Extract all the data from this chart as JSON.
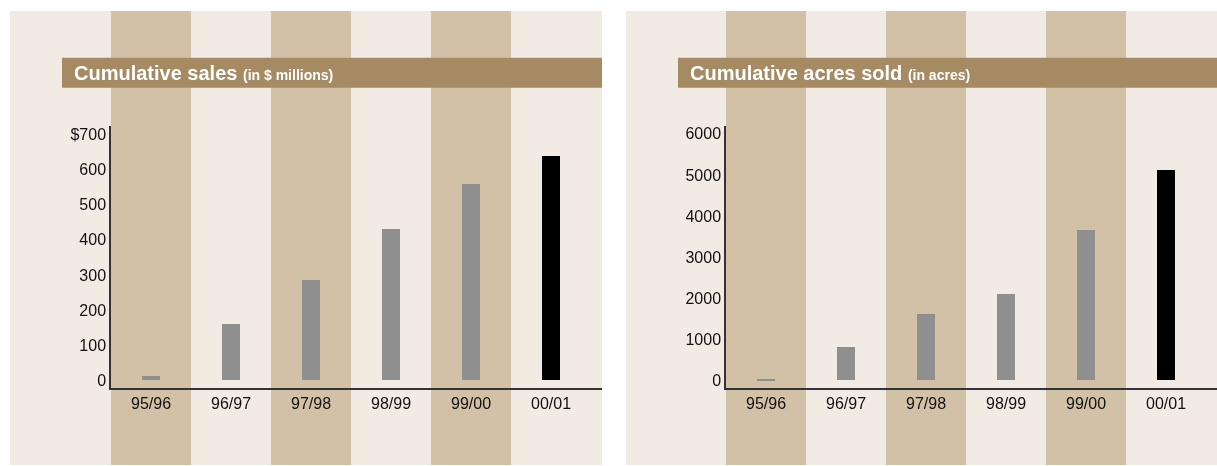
{
  "chart_data": [
    {
      "type": "bar",
      "title": "Cumulative sales",
      "subtitle": "(in $ millions)",
      "categories": [
        "95/96",
        "96/97",
        "97/98",
        "98/99",
        "99/00",
        "00/01"
      ],
      "values": [
        12,
        160,
        285,
        429,
        557,
        638
      ],
      "colors": [
        "#8f8f8f",
        "#8f8f8f",
        "#8f8f8f",
        "#8f8f8f",
        "#8f8f8f",
        "#000000"
      ],
      "ylim": [
        -22,
        722
      ],
      "yticks": [
        0,
        100,
        200,
        300,
        400,
        500,
        600,
        {
          "value": 700,
          "label": "$700"
        }
      ],
      "grid": false,
      "legend": false,
      "bands": [
        {
          "axis": "x",
          "from": "95/96",
          "to": "95/96",
          "color": "#d2c1a7"
        },
        {
          "axis": "x",
          "from": "97/98",
          "to": "97/98",
          "color": "#d2c1a7"
        },
        {
          "axis": "x",
          "from": "99/00",
          "to": "99/00",
          "color": "#d2c1a7"
        }
      ]
    },
    {
      "type": "bar",
      "title": "Cumulative acres sold",
      "subtitle": "(in acres)",
      "categories": [
        "95/96",
        "96/97",
        "97/98",
        "98/99",
        "99/00",
        "00/01"
      ],
      "values": [
        17,
        795,
        1608,
        2100,
        3647,
        5100
      ],
      "colors": [
        "#8f8f8f",
        "#8f8f8f",
        "#8f8f8f",
        "#8f8f8f",
        "#8f8f8f",
        "#000000"
      ],
      "ylim": [
        -190,
        6180
      ],
      "yticks": [
        0,
        1000,
        2000,
        3000,
        4000,
        5000,
        6000
      ],
      "grid": false,
      "legend": false,
      "bands": [
        {
          "axis": "x",
          "from": "95/96",
          "to": "95/96",
          "color": "#d2c1a7"
        },
        {
          "axis": "x",
          "from": "97/98",
          "to": "97/98",
          "color": "#d2c1a7"
        },
        {
          "axis": "x",
          "from": "99/00",
          "to": "99/00",
          "color": "#d2c1a7"
        }
      ]
    }
  ]
}
